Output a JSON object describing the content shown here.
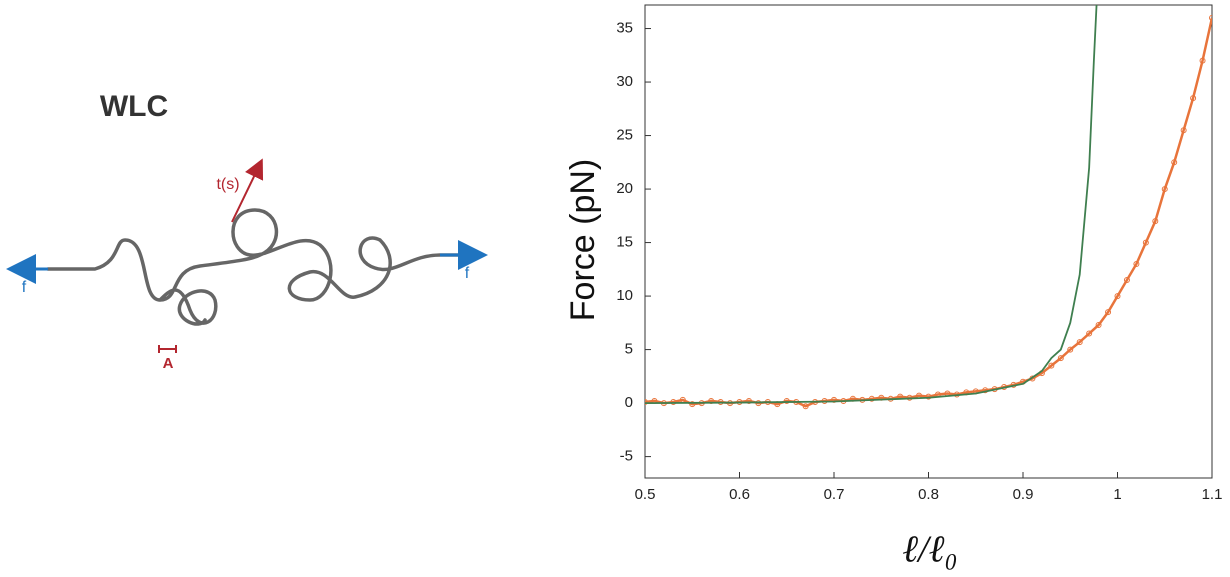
{
  "diagram": {
    "title": "WLC",
    "tangent_label": "t(s)",
    "force_left": "f",
    "force_right": "f",
    "persistence_label": "A"
  },
  "chart_data": {
    "type": "line",
    "y_label": "Force (pN)",
    "x_label": "ℓ/ℓ₀",
    "xlim": [
      0.5,
      1.1
    ],
    "xticks": [
      0.5,
      0.6,
      0.7,
      0.8,
      0.9,
      1,
      1.1
    ],
    "ylim": [
      -7,
      37.2
    ],
    "yticks": [
      -5,
      0,
      5,
      10,
      15,
      20,
      25,
      30,
      35
    ],
    "series": [
      {
        "color": "#e8743b",
        "marker": true,
        "x": [
          0.5,
          0.51,
          0.52,
          0.53,
          0.54,
          0.55,
          0.56,
          0.57,
          0.58,
          0.59,
          0.6,
          0.61,
          0.62,
          0.63,
          0.64,
          0.65,
          0.66,
          0.67,
          0.68,
          0.69,
          0.7,
          0.71,
          0.72,
          0.73,
          0.74,
          0.75,
          0.76,
          0.77,
          0.78,
          0.79,
          0.8,
          0.81,
          0.82,
          0.83,
          0.84,
          0.85,
          0.86,
          0.87,
          0.88,
          0.89,
          0.9,
          0.91,
          0.92,
          0.93,
          0.94,
          0.95,
          0.96,
          0.97,
          0.98,
          0.99,
          1,
          1.01,
          1.02,
          1.03,
          1.04,
          1.05,
          1.06,
          1.07,
          1.08,
          1.09,
          1.1
        ],
        "values": [
          0.1,
          0.2,
          0.0,
          0.1,
          0.3,
          -0.1,
          0.0,
          0.2,
          0.1,
          0.0,
          0.1,
          0.2,
          0.0,
          0.1,
          -0.1,
          0.2,
          0.1,
          -0.3,
          0.1,
          0.2,
          0.3,
          0.2,
          0.4,
          0.3,
          0.4,
          0.5,
          0.4,
          0.6,
          0.5,
          0.7,
          0.6,
          0.8,
          0.9,
          0.8,
          1.0,
          1.1,
          1.2,
          1.3,
          1.5,
          1.7,
          2.0,
          2.3,
          2.8,
          3.5,
          4.2,
          5.0,
          5.7,
          6.5,
          7.3,
          8.5,
          10.0,
          11.5,
          13.0,
          15.0,
          17.0,
          20.0,
          22.5,
          25.5,
          28.5,
          32.0,
          36.0
        ]
      },
      {
        "color": "#3f7f4f",
        "marker": false,
        "x": [
          0.5,
          0.6,
          0.7,
          0.8,
          0.85,
          0.9,
          0.92,
          0.93,
          0.94,
          0.95,
          0.96,
          0.97,
          0.975,
          0.978
        ],
        "values": [
          0,
          0.05,
          0.15,
          0.5,
          0.9,
          1.8,
          3,
          4.2,
          5,
          7.5,
          12,
          22,
          32,
          37.5
        ]
      }
    ]
  }
}
